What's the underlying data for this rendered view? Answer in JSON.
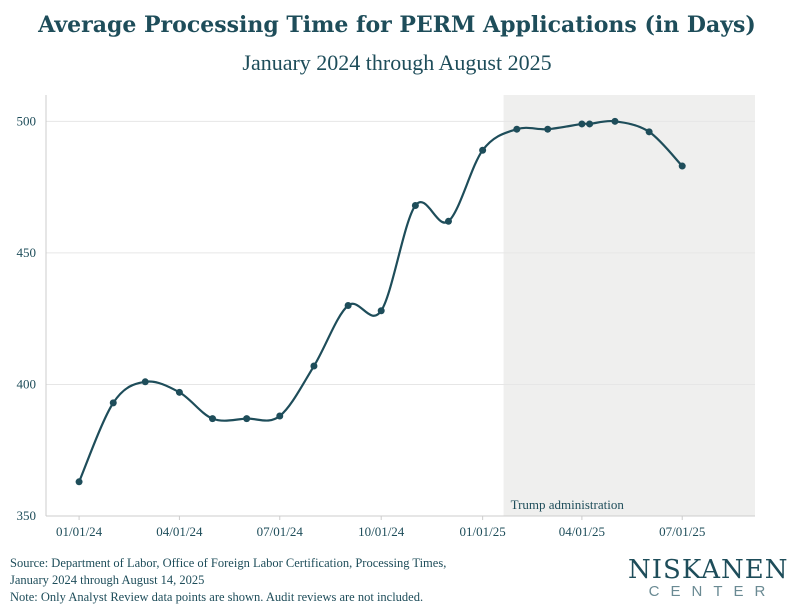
{
  "title": "Average Processing Time for PERM Applications (in Days)",
  "subtitle": "January 2024 through August 2025",
  "colors": {
    "line": "#1e4d5a",
    "shade": "#efefee",
    "grid": "#e6e6e6",
    "text": "#1e4d5a"
  },
  "chart_data": {
    "type": "line",
    "title": "Average Processing Time for PERM Applications (in Days)",
    "subtitle": "January 2024 through August 2025",
    "xlabel": "",
    "ylabel": "",
    "ylim": [
      350,
      510
    ],
    "xlim": [
      "2023-12-02",
      "2025-09-05"
    ],
    "yticks": [
      350,
      400,
      450,
      500
    ],
    "xticks": [
      "01/01/24",
      "04/01/24",
      "07/01/24",
      "10/01/24",
      "01/01/25",
      "04/01/25",
      "07/01/25"
    ],
    "grid": true,
    "shaded_region": {
      "label": "Trump administration",
      "start": "2025-01-20",
      "end": "2025-09-05"
    },
    "points": [
      {
        "date": "2024-01-01",
        "value": 363
      },
      {
        "date": "2024-02-01",
        "value": 393
      },
      {
        "date": "2024-03-01",
        "value": 401
      },
      {
        "date": "2024-04-01",
        "value": 397
      },
      {
        "date": "2024-05-01",
        "value": 387
      },
      {
        "date": "2024-06-01",
        "value": 387
      },
      {
        "date": "2024-07-01",
        "value": 388
      },
      {
        "date": "2024-08-01",
        "value": 407
      },
      {
        "date": "2024-09-01",
        "value": 430
      },
      {
        "date": "2024-10-01",
        "value": 428
      },
      {
        "date": "2024-11-01",
        "value": 468
      },
      {
        "date": "2024-12-01",
        "value": 462
      },
      {
        "date": "2025-01-01",
        "value": 489
      },
      {
        "date": "2025-02-01",
        "value": 497
      },
      {
        "date": "2025-03-01",
        "value": 497
      },
      {
        "date": "2025-04-01",
        "value": 499
      },
      {
        "date": "2025-04-08",
        "value": 499
      },
      {
        "date": "2025-05-01",
        "value": 500
      },
      {
        "date": "2025-06-01",
        "value": 496
      },
      {
        "date": "2025-07-01",
        "value": 483
      }
    ]
  },
  "footer": {
    "line1": "Source: Department of Labor, Office of Foreign Labor Certification, Processing Times,",
    "line2": "January 2024 through August 14, 2025",
    "line3": "Note: Only Analyst Review data points are shown. Audit reviews are not included."
  },
  "logo": {
    "main": "NISKANEN",
    "sub": "CENTER"
  }
}
